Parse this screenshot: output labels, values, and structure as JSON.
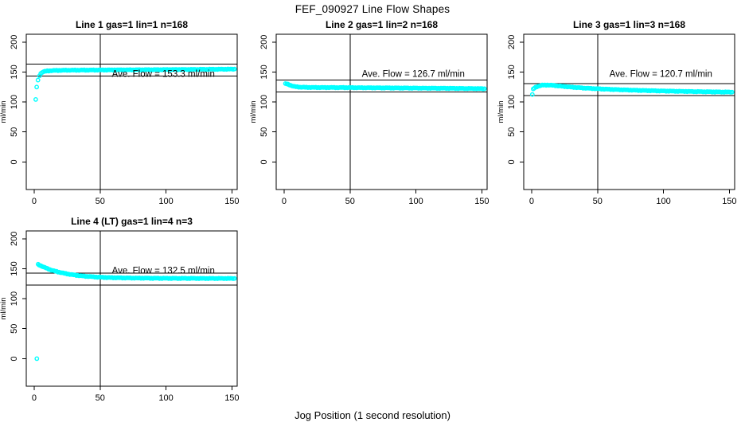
{
  "figure": {
    "title": "FEF_090927  Line Flow Shapes",
    "xlabel": "Jog Position (1 second resolution)",
    "point_color": "#00FFFF",
    "line_color": "#000000",
    "background": "#FFFFFF"
  },
  "chart_data": [
    {
      "type": "scatter",
      "title": "Line 1 gas=1 lin=1 n=168",
      "ylabel": "ml/min",
      "ave_flow": 153.3,
      "ave_label": "Ave. Flow =  153.3  ml/min",
      "upper_line": 163.3,
      "lower_line": 143.3,
      "vline_x": 50,
      "xlim": [
        -6,
        154
      ],
      "ylim": [
        -46,
        213
      ],
      "xticks": [
        0,
        50,
        100,
        150
      ],
      "yticks": [
        0,
        50,
        100,
        150,
        200
      ],
      "grid": false,
      "points_xy": [
        [
          1.2,
          104
        ],
        [
          1.9,
          125
        ],
        [
          2.9,
          136
        ],
        [
          4,
          144
        ],
        [
          5,
          147.5
        ],
        [
          6,
          149.5
        ],
        [
          8,
          151
        ],
        [
          11,
          152
        ],
        [
          16,
          152.6
        ],
        [
          25,
          153
        ],
        [
          45,
          153.3
        ],
        [
          70,
          153.6
        ],
        [
          100,
          154
        ],
        [
          125,
          154.4
        ],
        [
          152,
          154.9
        ]
      ]
    },
    {
      "type": "scatter",
      "title": "Line 2 gas=1 lin=2 n=168",
      "ylabel": "ml/min",
      "ave_flow": 126.7,
      "ave_label": "Ave. Flow =  126.7  ml/min",
      "upper_line": 136.7,
      "lower_line": 116.7,
      "vline_x": 50,
      "xlim": [
        -6,
        154
      ],
      "ylim": [
        -46,
        213
      ],
      "xticks": [
        0,
        50,
        100,
        150
      ],
      "yticks": [
        0,
        50,
        100,
        150,
        200
      ],
      "grid": false,
      "points_xy": [
        [
          1,
          130.5
        ],
        [
          2,
          130.2
        ],
        [
          3.5,
          129
        ],
        [
          5,
          127.8
        ],
        [
          7,
          126.3
        ],
        [
          9,
          125.4
        ],
        [
          12,
          124.8
        ],
        [
          17,
          124.4
        ],
        [
          25,
          124.2
        ],
        [
          40,
          124.1
        ],
        [
          60,
          123.8
        ],
        [
          85,
          123.4
        ],
        [
          110,
          123
        ],
        [
          130,
          122.7
        ],
        [
          152,
          122.2
        ]
      ]
    },
    {
      "type": "scatter",
      "title": "Line 3 gas=1 lin=3 n=168",
      "ylabel": "ml/min",
      "ave_flow": 120.7,
      "ave_label": "Ave. Flow =  120.7  ml/min",
      "upper_line": 130.7,
      "lower_line": 110.7,
      "vline_x": 50,
      "xlim": [
        -6,
        154
      ],
      "ylim": [
        -46,
        213
      ],
      "xticks": [
        0,
        50,
        100,
        150
      ],
      "yticks": [
        0,
        50,
        100,
        150,
        200
      ],
      "grid": false,
      "points_xy": [
        [
          0.5,
          112
        ],
        [
          1.2,
          121.5
        ],
        [
          3,
          124.5
        ],
        [
          5,
          126.5
        ],
        [
          8,
          128
        ],
        [
          12,
          128.3
        ],
        [
          16,
          127.8
        ],
        [
          22,
          126.5
        ],
        [
          30,
          124.8
        ],
        [
          40,
          123.2
        ],
        [
          52,
          121.8
        ],
        [
          65,
          120.6
        ],
        [
          80,
          119.5
        ],
        [
          95,
          118.6
        ],
        [
          110,
          117.9
        ],
        [
          125,
          117.3
        ],
        [
          140,
          116.8
        ],
        [
          152,
          116.5
        ]
      ]
    },
    {
      "type": "scatter",
      "title": "Line 4 (LT) gas=1 lin=4 n=3",
      "ylabel": "ml/min",
      "ave_flow": 132.5,
      "ave_label": "Ave. Flow =  132.5  ml/min",
      "upper_line": 142.5,
      "lower_line": 122.5,
      "vline_x": 50,
      "xlim": [
        -6,
        154
      ],
      "ylim": [
        -46,
        213
      ],
      "xticks": [
        0,
        50,
        100,
        150
      ],
      "yticks": [
        0,
        50,
        100,
        150,
        200
      ],
      "grid": false,
      "points_xy": [
        [
          2,
          0
        ],
        [
          3,
          157
        ],
        [
          4.5,
          155.5
        ],
        [
          6,
          154
        ],
        [
          8,
          152
        ],
        [
          10,
          150.2
        ],
        [
          13,
          147.8
        ],
        [
          16,
          145.8
        ],
        [
          20,
          143.6
        ],
        [
          24,
          141.8
        ],
        [
          28,
          140.3
        ],
        [
          32,
          139
        ],
        [
          36,
          138
        ],
        [
          40,
          137.2
        ],
        [
          45,
          136.4
        ],
        [
          50,
          135.8
        ],
        [
          57,
          135.2
        ],
        [
          65,
          134.8
        ],
        [
          75,
          134.4
        ],
        [
          90,
          134.1
        ],
        [
          110,
          133.9
        ],
        [
          130,
          133.8
        ],
        [
          152,
          133.7
        ]
      ]
    }
  ]
}
